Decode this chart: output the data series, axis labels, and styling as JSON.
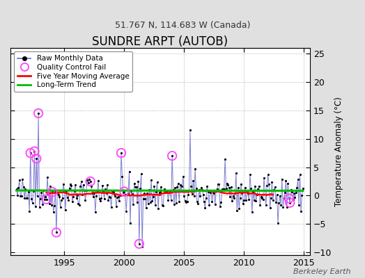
{
  "title": "SUNDRE ARPT (AUTOB)",
  "subtitle": "51.767 N, 114.683 W (Canada)",
  "ylabel_right": "Temperature Anomaly (°C)",
  "watermark": "Berkeley Earth",
  "xlim": [
    1990.5,
    2015.5
  ],
  "ylim": [
    -10.5,
    26
  ],
  "yticks": [
    -10,
    -5,
    0,
    5,
    10,
    15,
    20,
    25
  ],
  "xticks": [
    1995,
    2000,
    2005,
    2010,
    2015
  ],
  "bg_color": "#e0e0e0",
  "plot_bg": "#ffffff",
  "line_color": "#6666cc",
  "dot_color": "#000000",
  "ma_color": "#ff0000",
  "trend_color": "#00bb00",
  "qc_color": "#ff44ff",
  "start_year": 1991,
  "n_months": 288,
  "seed": 42
}
